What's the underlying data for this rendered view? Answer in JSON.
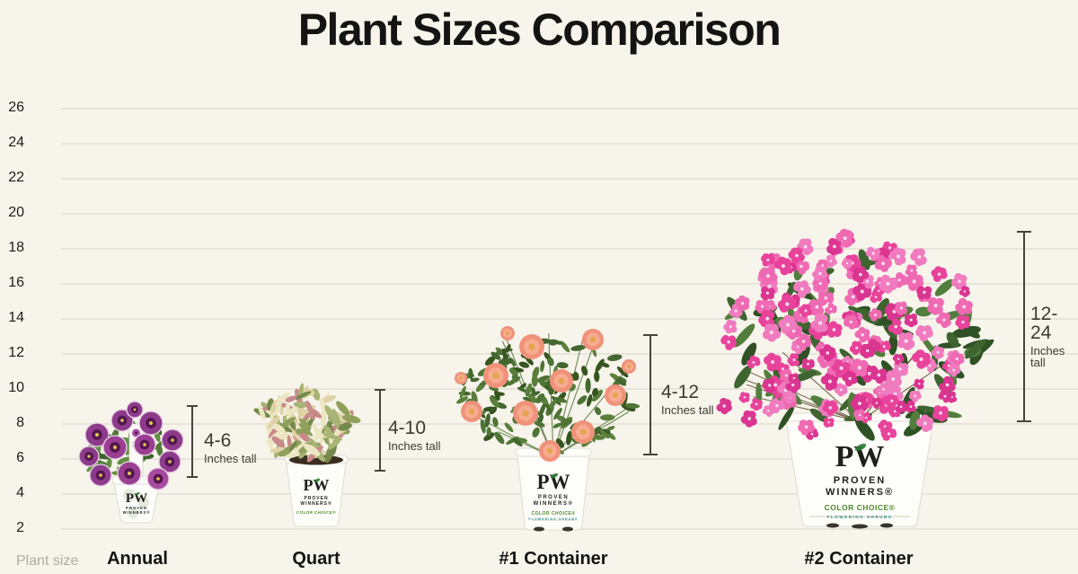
{
  "title": "Plant Sizes Comparison",
  "y_axis": {
    "ticks": [
      26,
      24,
      22,
      20,
      18,
      16,
      14,
      12,
      10,
      8,
      6,
      4,
      2
    ]
  },
  "x_axis": {
    "label": "Plant size"
  },
  "plants": [
    {
      "name": "Annual",
      "height_label": "4-6",
      "height_sub": "Inches tall",
      "pot": {
        "logo": "PW",
        "line1": "PROVEN",
        "line2": "WINNERS®"
      }
    },
    {
      "name": "Quart",
      "height_label": "4-10",
      "height_sub": "Inches tall",
      "pot": {
        "logo": "PW",
        "line1": "PROVEN",
        "line2": "WINNERS®",
        "badge": "COLOR CHOICE®"
      }
    },
    {
      "name": "#1 Container",
      "height_label": "4-12",
      "height_sub": "Inches tall",
      "pot": {
        "logo": "PW",
        "line1": "PROVEN",
        "line2": "WINNERS®",
        "badge": "COLOR CHOICE®",
        "badge2": "FLOWERING SHRUBS"
      }
    },
    {
      "name": "#2 Container",
      "height_label": "12-24",
      "height_sub": "Inches tall",
      "pot": {
        "logo": "PW",
        "line1": "PROVEN",
        "line2": "WINNERS®",
        "badge": "COLOR CHOICE®",
        "badge2": "FLOWERING SHRUBS"
      }
    }
  ],
  "chart_data": {
    "type": "bar",
    "subtype": "pictorial-range-comparison",
    "title": "Plant Sizes Comparison",
    "xlabel": "Plant size",
    "ylabel": "",
    "categories": [
      "Annual",
      "Quart",
      "#1 Container",
      "#2 Container"
    ],
    "series": [
      {
        "name": "Height range (inches tall)",
        "low": [
          4,
          4,
          4,
          12
        ],
        "high": [
          6,
          10,
          12,
          24
        ]
      }
    ],
    "point_labels": [
      "4-6 Inches tall",
      "4-10 Inches tall",
      "4-12 Inches tall",
      "12-24 Inches tall"
    ],
    "yticks": [
      2,
      4,
      6,
      8,
      10,
      12,
      14,
      16,
      18,
      20,
      22,
      24,
      26
    ],
    "ylim": [
      2,
      26
    ],
    "grid": true,
    "legend": false
  }
}
